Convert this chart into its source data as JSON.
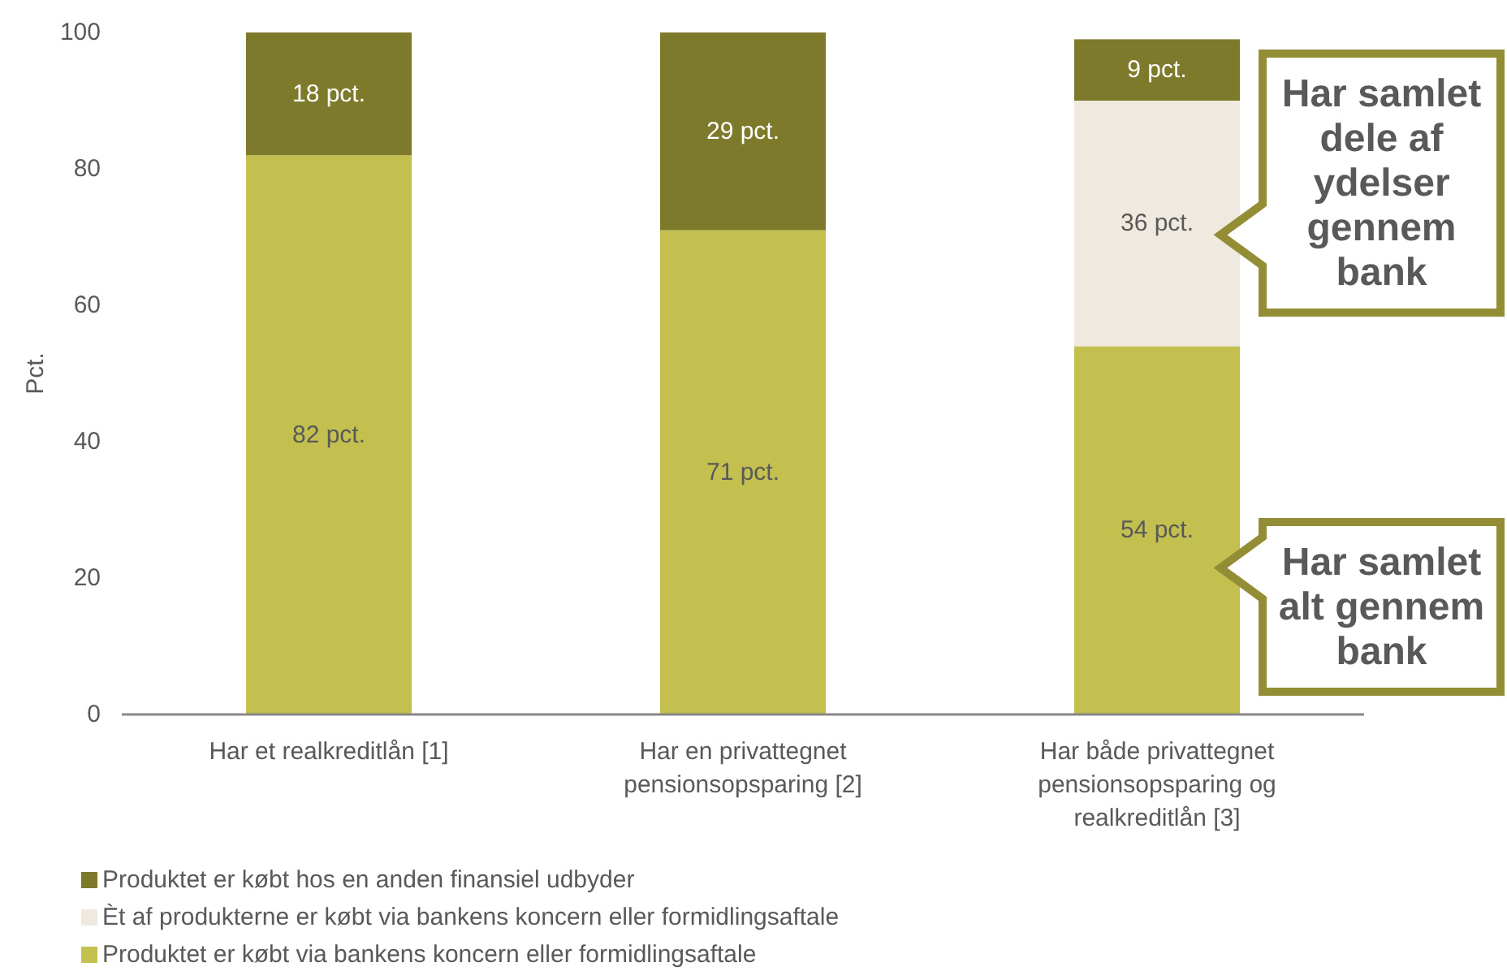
{
  "chart_data": {
    "type": "bar",
    "stacked": true,
    "ylabel": "Pct.",
    "categories": [
      "Har et realkreditlån [1]",
      "Har en privattegnet pensionsopsparing [2]",
      "Har både privattegnet pensionsopsparing og realkreditlån [3]"
    ],
    "series": [
      {
        "name": "Produktet er købt via bankens koncern eller formidlingsaftale",
        "color": "#c3c04f",
        "values": [
          82,
          71,
          54
        ],
        "value_labels": [
          "82 pct.",
          "71 pct.",
          "54 pct."
        ]
      },
      {
        "name": "Èt af produkterne er købt via bankens koncern eller formidlingsaftale",
        "color": "#efe9df",
        "values": [
          null,
          null,
          36
        ],
        "value_labels": [
          null,
          null,
          "36 pct."
        ]
      },
      {
        "name": "Produktet er købt hos en anden finansiel udbyder",
        "color": "#7d7a2c",
        "values": [
          18,
          29,
          9
        ],
        "value_labels": [
          "18 pct.",
          "29 pct.",
          "9 pct."
        ]
      }
    ],
    "ylim": [
      0,
      100
    ],
    "yticks": [
      0,
      20,
      40,
      60,
      80,
      100
    ],
    "legend": "bottom",
    "annotations": [
      "Har samlet dele af ydelser gennem bank",
      "Har samlet alt gennem bank"
    ]
  }
}
